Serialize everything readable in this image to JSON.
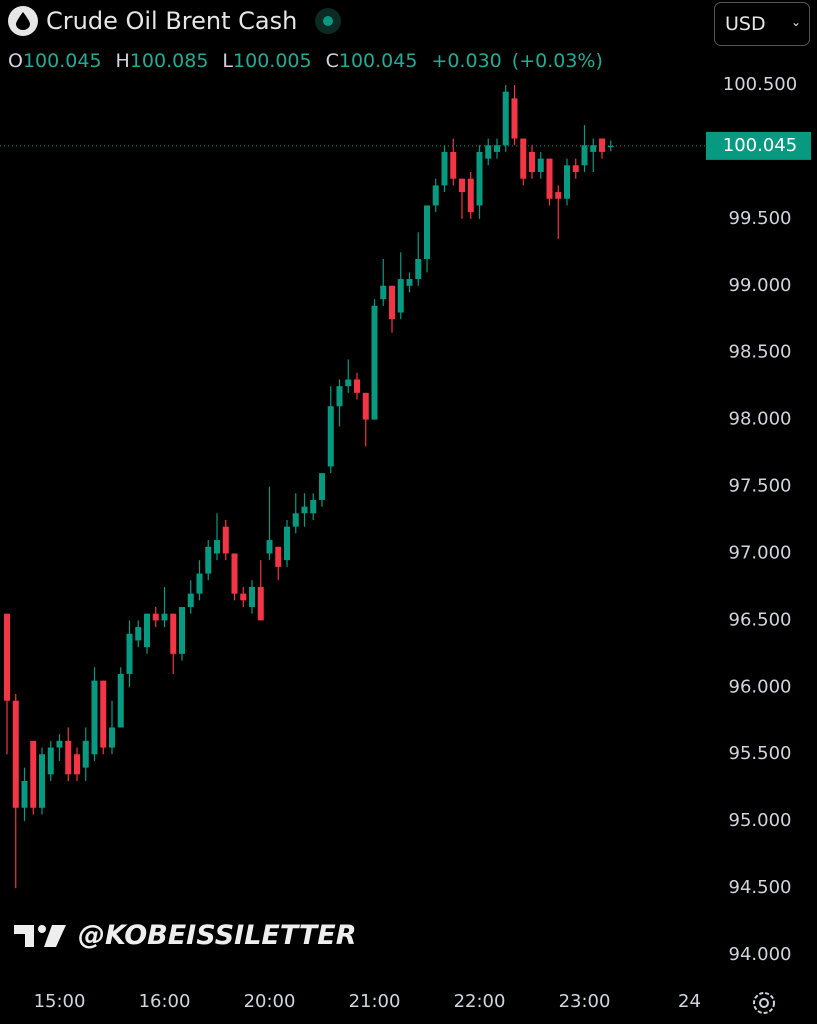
{
  "chart_data": {
    "type": "candlestick",
    "title": "Crude Oil Brent Cash",
    "currency": "USD",
    "legend_values": [
      {
        "label": "O",
        "value": 100.045
      },
      {
        "label": "H",
        "value": 100.085
      },
      {
        "label": "L",
        "value": 100.005
      },
      {
        "label": "C",
        "value": 100.045
      }
    ],
    "change": {
      "value": 0.03,
      "label": "+0.030"
    },
    "change_pct": {
      "value": 0.03,
      "label": "(+0.03%)"
    },
    "watermark": "@KOBEISSILETTER",
    "up_color": "#089981",
    "down_color": "#f23645",
    "ylim": [
      93.776,
      101.135
    ],
    "yticks": [
      {
        "value": 94,
        "label": "94.000"
      },
      {
        "value": 94.5,
        "label": "94.500"
      },
      {
        "value": 95,
        "label": "95.000"
      },
      {
        "value": 95.5,
        "label": "95.500"
      },
      {
        "value": 96,
        "label": "96.000"
      },
      {
        "value": 96.5,
        "label": "96.500"
      },
      {
        "value": 97,
        "label": "97.000"
      },
      {
        "value": 97.5,
        "label": "97.500"
      },
      {
        "value": 98,
        "label": "98.000"
      },
      {
        "value": 98.5,
        "label": "98.500"
      },
      {
        "value": 99,
        "label": "99.000"
      },
      {
        "value": 99.5,
        "label": "99.500"
      },
      {
        "value": 100.5,
        "label": "100.500"
      }
    ],
    "categories": [
      null,
      null,
      null,
      null,
      null,
      null,
      "15:00",
      null,
      null,
      null,
      null,
      null,
      null,
      null,
      null,
      null,
      null,
      null,
      "16:00",
      null,
      null,
      null,
      null,
      null,
      null,
      null,
      null,
      null,
      null,
      null,
      "20:00",
      null,
      null,
      null,
      null,
      null,
      null,
      null,
      null,
      null,
      null,
      null,
      "21:00",
      null,
      null,
      null,
      null,
      null,
      null,
      null,
      null,
      null,
      null,
      null,
      "22:00",
      null,
      null,
      null,
      null,
      null,
      null,
      null,
      null,
      null,
      null,
      null,
      "23:00",
      null,
      null,
      null,
      null,
      null,
      null,
      null,
      null,
      null,
      null,
      null,
      "24",
      null
    ],
    "open": [
      96.55,
      95.9,
      95.1,
      95.6,
      95.1,
      95.35,
      95.55,
      95.6,
      95.5,
      95.4,
      95.5,
      96.05,
      95.55,
      95.7,
      96.1,
      96.35,
      96.3,
      96.55,
      96.5,
      96.55,
      96.25,
      96.6,
      96.7,
      96.85,
      97.0,
      97.2,
      97.0,
      96.7,
      96.6,
      96.75,
      97.0,
      97.05,
      96.95,
      97.2,
      97.3,
      97.3,
      97.4,
      97.65,
      98.1,
      98.25,
      98.3,
      98.2,
      98.0,
      98.9,
      99.0,
      98.8,
      99.0,
      99.05,
      99.2,
      99.6,
      99.75,
      100.0,
      99.8,
      99.8,
      99.6,
      99.95,
      100.0,
      100.05,
      100.4,
      100.1,
      100.0,
      99.85,
      99.95,
      99.7,
      99.65,
      99.9,
      99.9,
      100.0,
      100.1,
      100.045,
      null,
      null,
      null,
      null,
      null,
      null,
      null,
      null,
      null,
      null
    ],
    "high": [
      96.55,
      95.95,
      95.4,
      95.6,
      95.55,
      95.6,
      95.65,
      95.7,
      95.55,
      95.7,
      96.15,
      96.05,
      95.9,
      96.15,
      96.5,
      96.5,
      96.55,
      96.6,
      96.75,
      96.55,
      96.6,
      96.8,
      96.95,
      97.1,
      97.3,
      97.25,
      97.0,
      96.75,
      96.8,
      96.95,
      97.5,
      97.05,
      97.25,
      97.45,
      97.45,
      97.45,
      97.6,
      98.25,
      98.3,
      98.45,
      98.35,
      98.2,
      98.9,
      99.2,
      99.0,
      99.25,
      99.1,
      99.4,
      99.6,
      99.8,
      100.05,
      100.1,
      99.8,
      99.85,
      100.05,
      100.1,
      100.1,
      100.5,
      100.5,
      100.1,
      100.05,
      100.0,
      99.95,
      99.75,
      99.95,
      99.95,
      100.2,
      100.1,
      100.1,
      100.085,
      null,
      null,
      null,
      null,
      null,
      null,
      null,
      null,
      null,
      null
    ],
    "low": [
      95.5,
      94.5,
      95.0,
      95.05,
      95.05,
      95.3,
      95.45,
      95.3,
      95.3,
      95.3,
      95.45,
      95.5,
      95.5,
      95.7,
      96.0,
      96.3,
      96.25,
      96.45,
      96.45,
      96.1,
      96.2,
      96.55,
      96.65,
      96.8,
      96.95,
      96.95,
      96.65,
      96.6,
      96.55,
      96.5,
      96.95,
      96.8,
      96.9,
      97.15,
      97.2,
      97.25,
      97.35,
      97.6,
      97.95,
      98.2,
      98.15,
      97.8,
      98.0,
      98.85,
      98.65,
      98.75,
      98.95,
      99.0,
      99.1,
      99.55,
      99.7,
      99.75,
      99.5,
      99.5,
      99.5,
      99.9,
      99.95,
      100.0,
      100.05,
      99.75,
      99.8,
      99.8,
      99.6,
      99.35,
      99.6,
      99.8,
      99.85,
      99.85,
      99.95,
      100.005,
      null,
      null,
      null,
      null,
      null,
      null,
      null,
      null,
      null,
      null
    ],
    "close": [
      95.9,
      95.1,
      95.3,
      95.1,
      95.5,
      95.55,
      95.6,
      95.35,
      95.35,
      95.6,
      96.05,
      95.55,
      95.7,
      96.1,
      96.4,
      96.45,
      96.55,
      96.5,
      96.55,
      96.25,
      96.6,
      96.7,
      96.85,
      97.05,
      97.1,
      97.0,
      96.7,
      96.65,
      96.75,
      96.5,
      97.1,
      96.9,
      97.2,
      97.3,
      97.35,
      97.4,
      97.6,
      98.1,
      98.25,
      98.3,
      98.2,
      98.0,
      98.85,
      99.0,
      98.75,
      99.05,
      99.05,
      99.2,
      99.6,
      99.75,
      100.0,
      99.8,
      99.7,
      99.55,
      100.0,
      100.05,
      100.05,
      100.45,
      100.1,
      99.8,
      99.85,
      99.95,
      99.65,
      99.65,
      99.9,
      99.85,
      100.05,
      100.05,
      100.0,
      100.045,
      null,
      null,
      null,
      null,
      null,
      null,
      null,
      null,
      null,
      null
    ]
  }
}
